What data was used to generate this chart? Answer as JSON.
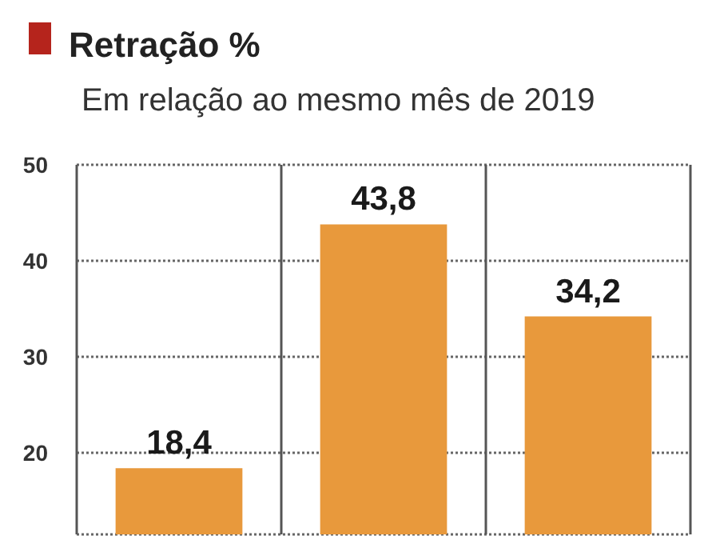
{
  "chart_data": {
    "type": "bar",
    "title": "Retração %",
    "subtitle": "Em relação ao mesmo mês de 2019",
    "categories": [
      null,
      null,
      null
    ],
    "values": [
      18.4,
      43.8,
      34.2
    ],
    "color": "#e8993c",
    "data_labels": true,
    "value_labels": [
      "18,4",
      "43,8",
      "34,2"
    ],
    "ylim": [
      11.5,
      50
    ],
    "yticks": [
      20,
      30,
      40,
      50
    ],
    "grid": true
  }
}
